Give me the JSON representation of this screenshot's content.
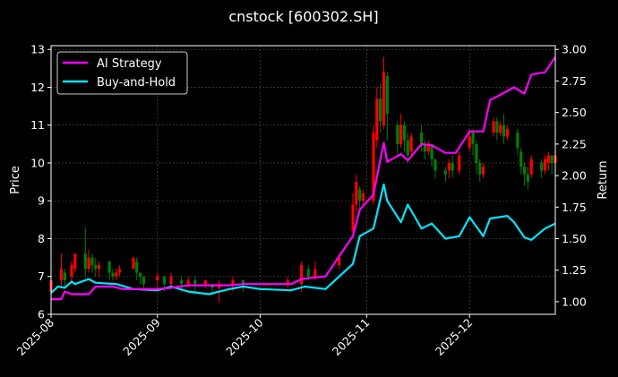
{
  "chart_data": {
    "type": "line",
    "title": "cnstock [600302.SH]",
    "xlabel": "",
    "ylabel_left": "Price",
    "ylabel_right": "Return",
    "x_ticks": [
      "2025-08",
      "2025-09",
      "2025-10",
      "2025-11",
      "2025-12"
    ],
    "x_tick_dates": [
      "2025-08-01",
      "2025-09-01",
      "2025-10-01",
      "2025-11-01",
      "2025-12-01"
    ],
    "x_range": [
      "2025-08-01",
      "2025-12-26"
    ],
    "ylim_left": [
      6,
      13.1
    ],
    "y_ticks_left": [
      6,
      7,
      8,
      9,
      10,
      11,
      12,
      13
    ],
    "ylim_right": [
      0.9,
      3.03
    ],
    "y_ticks_right": [
      "1.00",
      "1.25",
      "1.50",
      "1.75",
      "2.00",
      "2.25",
      "2.50",
      "2.75",
      "3.00"
    ],
    "grid": true,
    "legend_position": "top-left",
    "colors": {
      "up": "#ff0000",
      "down": "#008000",
      "ai": "#ff00ff",
      "hold": "#00e5ff",
      "grid": "#555555",
      "frame": "#ffffff"
    },
    "series": [
      {
        "name": "AI Strategy",
        "axis": "right",
        "points": [
          [
            "2025-08-01",
            1.02
          ],
          [
            "2025-08-04",
            1.02
          ],
          [
            "2025-08-05",
            1.08
          ],
          [
            "2025-08-07",
            1.06
          ],
          [
            "2025-08-12",
            1.06
          ],
          [
            "2025-08-14",
            1.12
          ],
          [
            "2025-08-19",
            1.12
          ],
          [
            "2025-08-22",
            1.1
          ],
          [
            "2025-08-26",
            1.1
          ],
          [
            "2025-09-01",
            1.1
          ],
          [
            "2025-09-05",
            1.11
          ],
          [
            "2025-09-10",
            1.13
          ],
          [
            "2025-09-16",
            1.13
          ],
          [
            "2025-09-22",
            1.13
          ],
          [
            "2025-09-26",
            1.14
          ],
          [
            "2025-10-01",
            1.14
          ],
          [
            "2025-10-10",
            1.14
          ],
          [
            "2025-10-13",
            1.18
          ],
          [
            "2025-10-16",
            1.19
          ],
          [
            "2025-10-20",
            1.2
          ],
          [
            "2025-10-28",
            1.52
          ],
          [
            "2025-10-30",
            1.73
          ],
          [
            "2025-11-03",
            1.85
          ],
          [
            "2025-11-05",
            2.13
          ],
          [
            "2025-11-06",
            2.26
          ],
          [
            "2025-11-07",
            2.11
          ],
          [
            "2025-11-11",
            2.17
          ],
          [
            "2025-11-13",
            2.12
          ],
          [
            "2025-11-17",
            2.25
          ],
          [
            "2025-11-20",
            2.24
          ],
          [
            "2025-11-24",
            2.18
          ],
          [
            "2025-11-27",
            2.18
          ],
          [
            "2025-12-01",
            2.35
          ],
          [
            "2025-12-05",
            2.35
          ],
          [
            "2025-12-07",
            2.6
          ],
          [
            "2025-12-10",
            2.64
          ],
          [
            "2025-12-14",
            2.7
          ],
          [
            "2025-12-17",
            2.65
          ],
          [
            "2025-12-19",
            2.8
          ],
          [
            "2025-12-23",
            2.82
          ],
          [
            "2025-12-26",
            2.94
          ]
        ]
      },
      {
        "name": "Buy-and-Hold",
        "axis": "right",
        "points": [
          [
            "2025-08-01",
            1.07
          ],
          [
            "2025-08-03",
            1.12
          ],
          [
            "2025-08-05",
            1.11
          ],
          [
            "2025-08-07",
            1.16
          ],
          [
            "2025-08-08",
            1.14
          ],
          [
            "2025-08-12",
            1.18
          ],
          [
            "2025-08-14",
            1.15
          ],
          [
            "2025-08-20",
            1.14
          ],
          [
            "2025-08-25",
            1.1
          ],
          [
            "2025-09-01",
            1.09
          ],
          [
            "2025-09-05",
            1.12
          ],
          [
            "2025-09-10",
            1.08
          ],
          [
            "2025-09-16",
            1.06
          ],
          [
            "2025-09-22",
            1.1
          ],
          [
            "2025-09-26",
            1.12
          ],
          [
            "2025-10-01",
            1.1
          ],
          [
            "2025-10-10",
            1.09
          ],
          [
            "2025-10-14",
            1.12
          ],
          [
            "2025-10-20",
            1.1
          ],
          [
            "2025-10-28",
            1.3
          ],
          [
            "2025-10-30",
            1.52
          ],
          [
            "2025-11-03",
            1.58
          ],
          [
            "2025-11-06",
            1.93
          ],
          [
            "2025-11-07",
            1.8
          ],
          [
            "2025-11-11",
            1.63
          ],
          [
            "2025-11-13",
            1.77
          ],
          [
            "2025-11-17",
            1.58
          ],
          [
            "2025-11-20",
            1.62
          ],
          [
            "2025-11-24",
            1.5
          ],
          [
            "2025-11-28",
            1.52
          ],
          [
            "2025-12-01",
            1.67
          ],
          [
            "2025-12-05",
            1.52
          ],
          [
            "2025-12-07",
            1.66
          ],
          [
            "2025-12-12",
            1.68
          ],
          [
            "2025-12-14",
            1.63
          ],
          [
            "2025-12-17",
            1.51
          ],
          [
            "2025-12-19",
            1.49
          ],
          [
            "2025-12-23",
            1.58
          ],
          [
            "2025-12-26",
            1.62
          ]
        ]
      }
    ],
    "candles": [
      [
        "2025-08-01",
        6.6,
        6.9,
        6.3,
        7.0
      ],
      [
        "2025-08-04",
        6.9,
        7.2,
        6.7,
        7.6
      ],
      [
        "2025-08-05",
        7.1,
        6.9,
        6.7,
        7.2
      ],
      [
        "2025-08-07",
        7.0,
        7.3,
        6.8,
        7.4
      ],
      [
        "2025-08-08",
        7.2,
        7.6,
        7.1,
        7.6
      ],
      [
        "2025-08-11",
        7.6,
        7.2,
        7.0,
        8.3
      ],
      [
        "2025-08-12",
        7.2,
        7.5,
        7.1,
        7.7
      ],
      [
        "2025-08-13",
        7.5,
        7.3,
        7.1,
        7.6
      ],
      [
        "2025-08-14",
        7.3,
        7.2,
        7.0,
        7.5
      ],
      [
        "2025-08-15",
        7.2,
        7.3,
        7.0,
        7.4
      ],
      [
        "2025-08-18",
        7.4,
        7.1,
        6.9,
        7.4
      ],
      [
        "2025-08-19",
        7.1,
        7.0,
        6.9,
        7.2
      ],
      [
        "2025-08-20",
        7.0,
        7.1,
        6.9,
        7.2
      ],
      [
        "2025-08-21",
        7.1,
        7.2,
        7.0,
        7.3
      ],
      [
        "2025-08-25",
        7.2,
        7.5,
        7.2,
        7.5
      ],
      [
        "2025-08-26",
        7.4,
        7.1,
        6.9,
        7.5
      ],
      [
        "2025-08-27",
        7.1,
        7.0,
        6.8,
        7.1
      ],
      [
        "2025-08-28",
        7.0,
        6.8,
        6.7,
        7.0
      ],
      [
        "2025-09-01",
        6.9,
        7.0,
        6.7,
        7.1
      ],
      [
        "2025-09-03",
        7.0,
        6.8,
        6.6,
        7.0
      ],
      [
        "2025-09-05",
        6.8,
        7.0,
        6.7,
        7.1
      ],
      [
        "2025-09-08",
        6.9,
        6.8,
        6.6,
        7.0
      ],
      [
        "2025-09-10",
        6.8,
        6.9,
        6.7,
        7.0
      ],
      [
        "2025-09-12",
        6.9,
        6.8,
        6.6,
        7.0
      ],
      [
        "2025-09-15",
        6.8,
        6.9,
        6.7,
        6.9
      ],
      [
        "2025-09-17",
        6.8,
        6.7,
        6.5,
        6.8
      ],
      [
        "2025-09-19",
        6.7,
        6.8,
        6.3,
        6.9
      ],
      [
        "2025-09-23",
        6.8,
        6.9,
        6.6,
        7.0
      ],
      [
        "2025-09-26",
        6.9,
        6.8,
        6.6,
        6.9
      ],
      [
        "2025-10-09",
        6.8,
        6.9,
        6.7,
        7.0
      ],
      [
        "2025-10-13",
        6.8,
        7.3,
        6.6,
        7.4
      ],
      [
        "2025-10-15",
        7.2,
        7.0,
        6.9,
        7.3
      ],
      [
        "2025-10-17",
        7.0,
        7.2,
        6.9,
        7.4
      ],
      [
        "2025-10-24",
        7.3,
        7.5,
        7.2,
        7.6
      ],
      [
        "2025-10-28",
        8.2,
        8.9,
        8.1,
        9.2
      ],
      [
        "2025-10-29",
        8.9,
        9.5,
        8.7,
        9.7
      ],
      [
        "2025-10-30",
        9.3,
        9.0,
        8.8,
        9.4
      ],
      [
        "2025-10-31",
        9.0,
        9.2,
        8.9,
        9.3
      ],
      [
        "2025-11-03",
        9.0,
        10.8,
        8.9,
        11.0
      ],
      [
        "2025-11-04",
        10.6,
        11.7,
        10.4,
        12.0
      ],
      [
        "2025-11-05",
        11.7,
        11.1,
        10.8,
        12.1
      ],
      [
        "2025-11-06",
        11.0,
        12.4,
        10.9,
        12.8
      ],
      [
        "2025-11-07",
        12.3,
        11.3,
        10.6,
        12.4
      ],
      [
        "2025-11-10",
        11.0,
        10.5,
        10.2,
        11.1
      ],
      [
        "2025-11-11",
        10.5,
        11.0,
        10.4,
        11.3
      ],
      [
        "2025-11-12",
        11.0,
        10.6,
        10.3,
        11.1
      ],
      [
        "2025-11-13",
        10.6,
        10.2,
        10.0,
        10.8
      ],
      [
        "2025-11-14",
        10.3,
        10.7,
        10.2,
        10.8
      ],
      [
        "2025-11-17",
        10.8,
        10.5,
        10.3,
        11.0
      ],
      [
        "2025-11-18",
        10.5,
        10.3,
        10.1,
        10.6
      ],
      [
        "2025-11-19",
        10.3,
        10.5,
        10.2,
        10.6
      ],
      [
        "2025-11-20",
        10.5,
        10.1,
        9.9,
        10.5
      ],
      [
        "2025-11-21",
        10.1,
        9.8,
        9.6,
        10.1
      ],
      [
        "2025-11-24",
        9.8,
        9.7,
        9.5,
        9.9
      ],
      [
        "2025-11-25",
        9.8,
        10.0,
        9.6,
        10.1
      ],
      [
        "2025-11-26",
        10.0,
        9.8,
        9.6,
        10.2
      ],
      [
        "2025-11-28",
        9.8,
        10.2,
        9.7,
        10.3
      ],
      [
        "2025-12-01",
        10.4,
        10.7,
        10.3,
        10.9
      ],
      [
        "2025-12-02",
        10.8,
        10.5,
        10.2,
        10.9
      ],
      [
        "2025-12-03",
        10.5,
        10.0,
        9.7,
        10.6
      ],
      [
        "2025-12-04",
        10.0,
        9.7,
        9.5,
        10.1
      ],
      [
        "2025-12-05",
        9.7,
        9.9,
        9.6,
        10.0
      ],
      [
        "2025-12-08",
        10.8,
        11.1,
        10.7,
        11.2
      ],
      [
        "2025-12-09",
        11.1,
        10.8,
        10.6,
        11.2
      ],
      [
        "2025-12-10",
        10.8,
        11.0,
        10.7,
        11.1
      ],
      [
        "2025-12-11",
        11.0,
        10.7,
        10.5,
        11.3
      ],
      [
        "2025-12-12",
        10.7,
        10.9,
        10.6,
        11.0
      ],
      [
        "2025-12-15",
        10.8,
        10.4,
        10.2,
        10.9
      ],
      [
        "2025-12-16",
        10.3,
        9.9,
        9.7,
        10.4
      ],
      [
        "2025-12-17",
        9.9,
        9.7,
        9.4,
        10.0
      ],
      [
        "2025-12-18",
        9.7,
        9.5,
        9.3,
        9.9
      ],
      [
        "2025-12-19",
        9.7,
        10.1,
        9.6,
        10.2
      ],
      [
        "2025-12-22",
        10.0,
        9.8,
        9.6,
        10.1
      ],
      [
        "2025-12-23",
        9.8,
        10.1,
        9.7,
        10.2
      ],
      [
        "2025-12-24",
        10.0,
        10.2,
        9.8,
        10.3
      ],
      [
        "2025-12-25",
        10.2,
        10.0,
        9.7,
        10.2
      ],
      [
        "2025-12-26",
        10.0,
        10.2,
        9.8,
        10.3
      ]
    ]
  }
}
